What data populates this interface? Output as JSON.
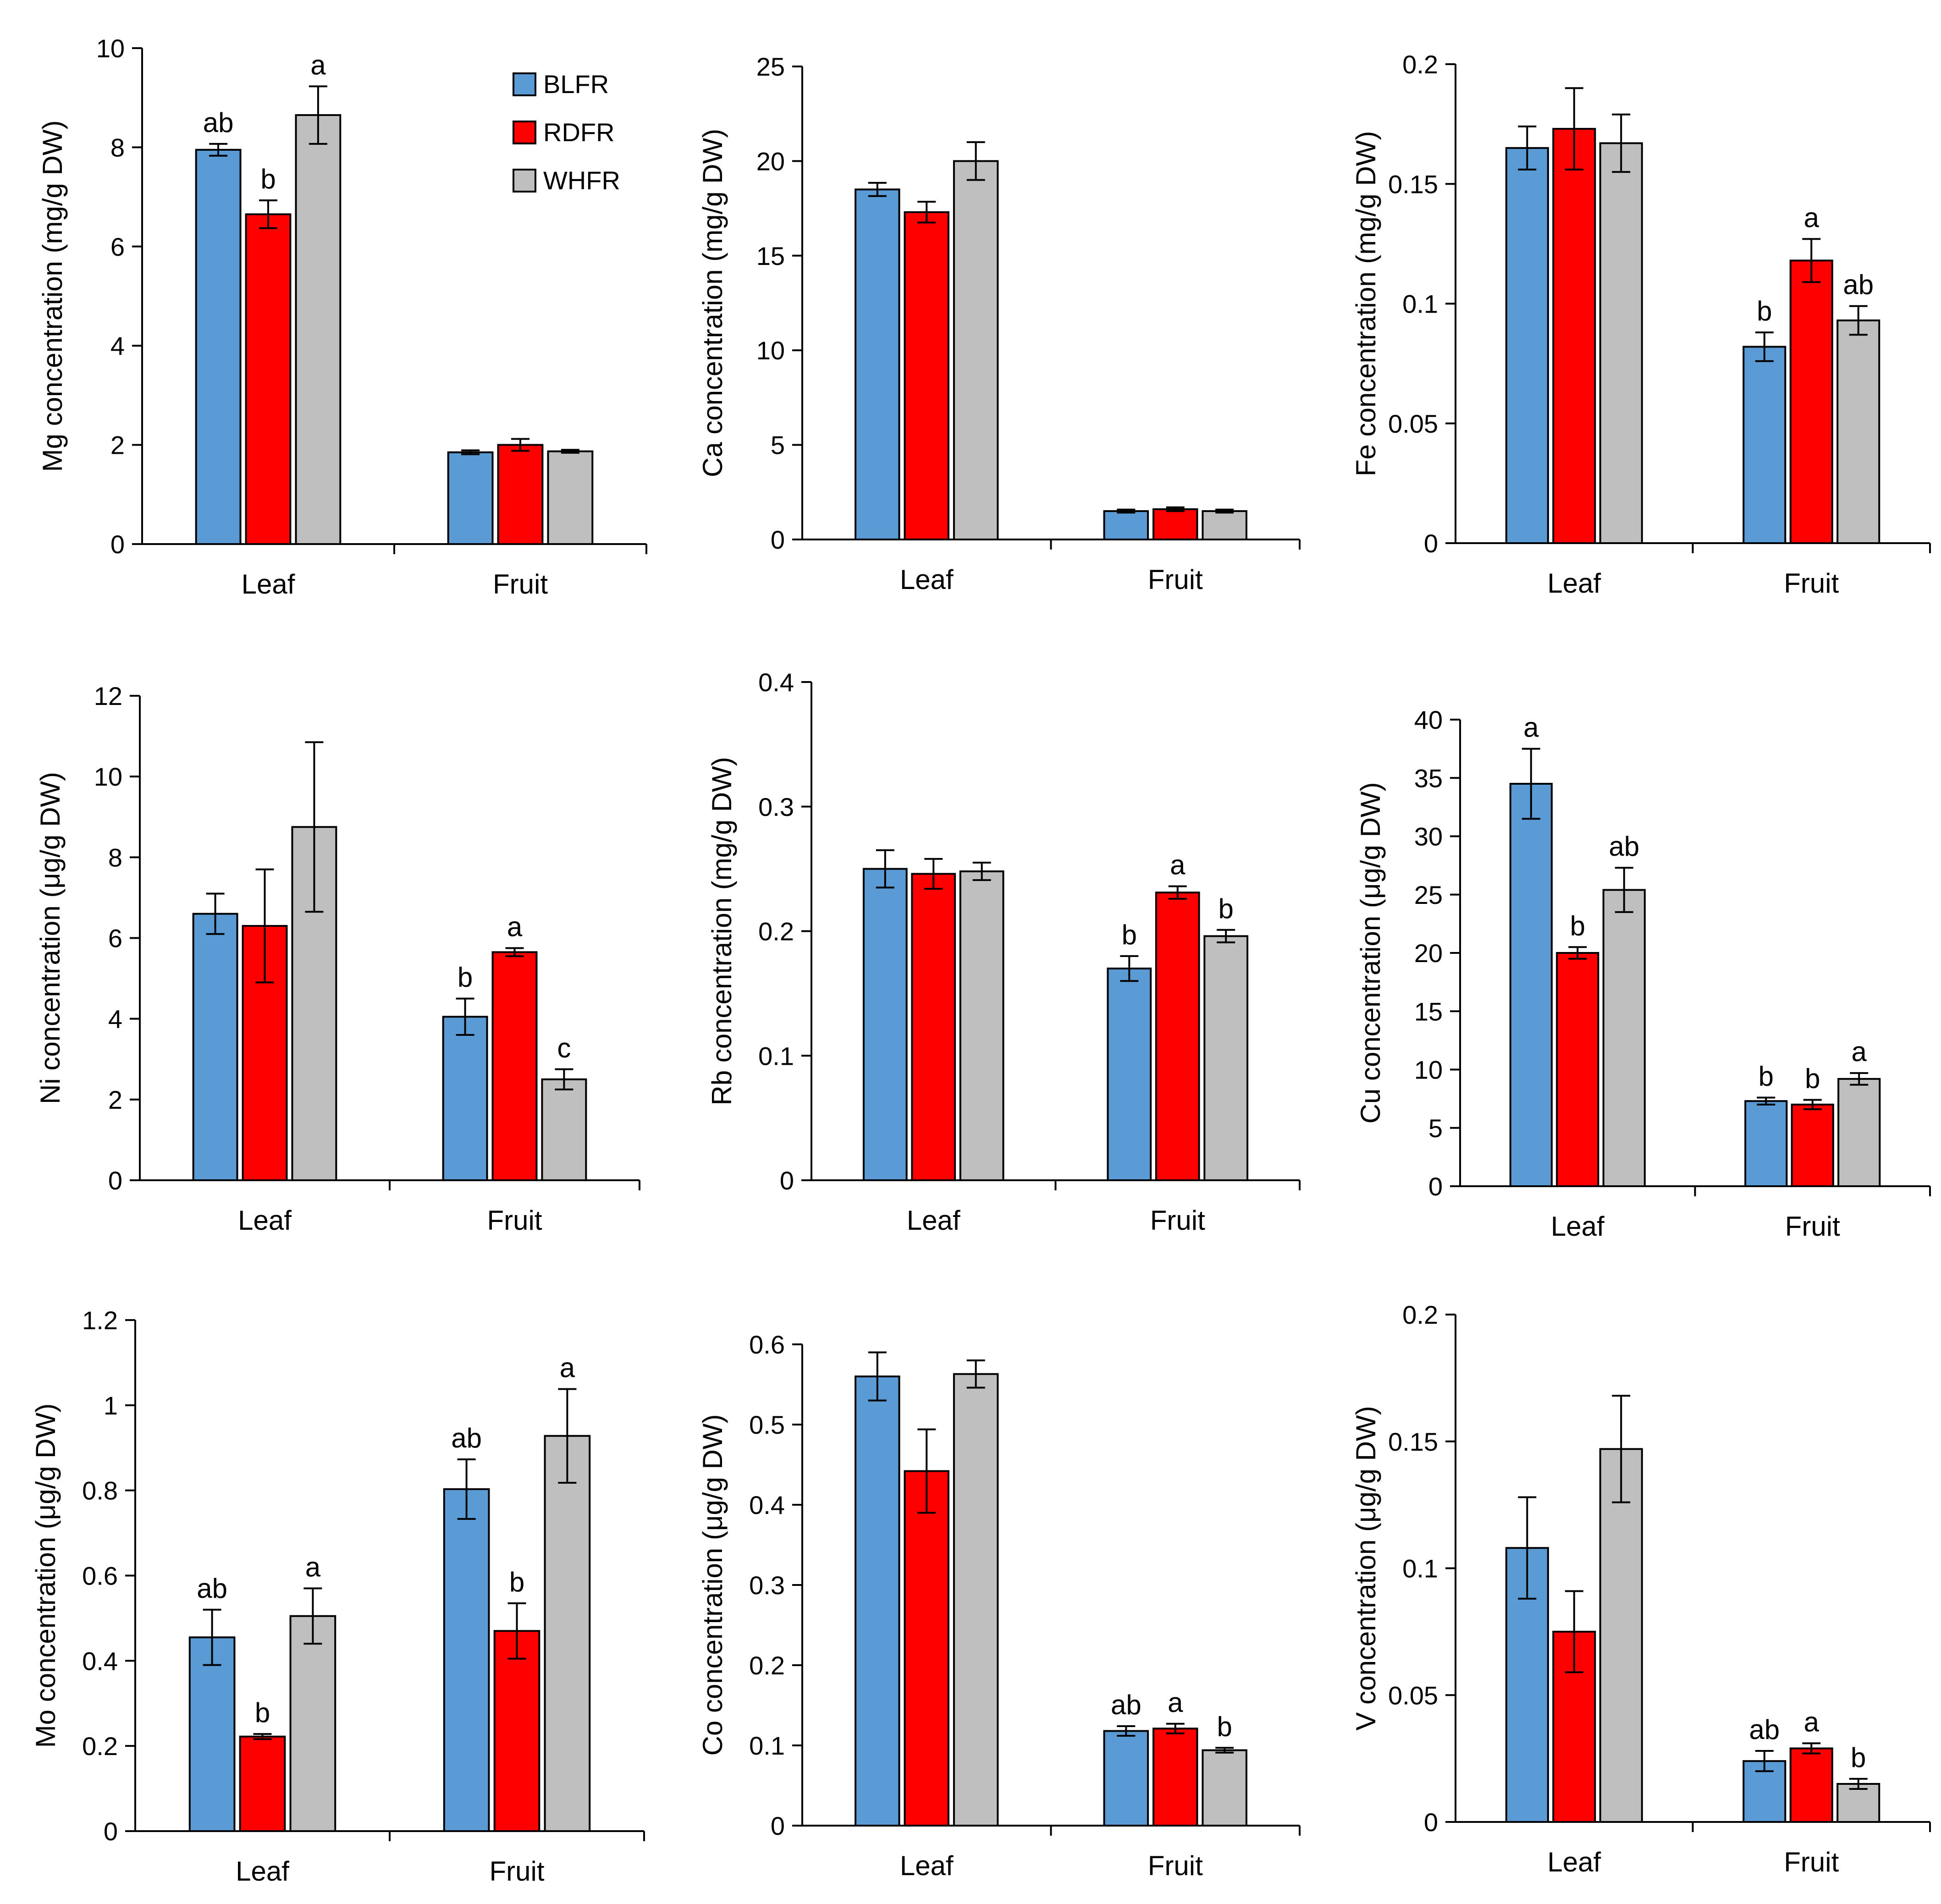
{
  "legend": [
    "BLFR",
    "RDFR",
    "WHFR"
  ],
  "colors": {
    "BLFR": "#5B9BD5",
    "RDFR": "#FF0000",
    "WHFR": "#BFBFBF"
  },
  "chart_data": [
    {
      "type": "bar",
      "ylabel": "Mg concentration (mg/g DW)",
      "ylim": [
        0,
        10
      ],
      "yticks": [
        "0",
        "2",
        "4",
        "6",
        "8",
        "10"
      ],
      "categories": [
        "Leaf",
        "Fruit"
      ],
      "series": [
        {
          "name": "BLFR",
          "values": [
            7.95,
            1.85
          ],
          "errors": [
            0.12,
            0.04
          ]
        },
        {
          "name": "RDFR",
          "values": [
            6.65,
            2.0
          ],
          "errors": [
            0.28,
            0.12
          ]
        },
        {
          "name": "WHFR",
          "values": [
            8.65,
            1.87
          ],
          "errors": [
            0.58,
            0.03
          ]
        }
      ],
      "labels": [
        [
          "ab",
          "b",
          "a"
        ],
        [
          "",
          "",
          ""
        ]
      ]
    },
    {
      "type": "bar",
      "ylabel": "Ca concentration (mg/g DW)",
      "ylim": [
        0,
        25
      ],
      "yticks": [
        "0",
        "5",
        "10",
        "15",
        "20",
        "25"
      ],
      "categories": [
        "Leaf",
        "Fruit"
      ],
      "series": [
        {
          "name": "BLFR",
          "values": [
            18.5,
            1.5
          ],
          "errors": [
            0.35,
            0.08
          ]
        },
        {
          "name": "RDFR",
          "values": [
            17.3,
            1.6
          ],
          "errors": [
            0.55,
            0.1
          ]
        },
        {
          "name": "WHFR",
          "values": [
            20.0,
            1.5
          ],
          "errors": [
            1.0,
            0.08
          ]
        }
      ],
      "labels": [
        [
          "",
          "",
          ""
        ],
        [
          "",
          "",
          ""
        ]
      ]
    },
    {
      "type": "bar",
      "ylabel": "Fe concentration (mg/g DW)",
      "ylim": [
        0,
        0.2
      ],
      "yticks": [
        "0",
        "0.05",
        "0.1",
        "0.15",
        "0.2"
      ],
      "categories": [
        "Leaf",
        "Fruit"
      ],
      "series": [
        {
          "name": "BLFR",
          "values": [
            0.165,
            0.082
          ],
          "errors": [
            0.009,
            0.006
          ]
        },
        {
          "name": "RDFR",
          "values": [
            0.173,
            0.118
          ],
          "errors": [
            0.017,
            0.009
          ]
        },
        {
          "name": "WHFR",
          "values": [
            0.167,
            0.093
          ],
          "errors": [
            0.012,
            0.006
          ]
        }
      ],
      "labels": [
        [
          "",
          "",
          ""
        ],
        [
          "b",
          "a",
          "ab"
        ]
      ]
    },
    {
      "type": "bar",
      "ylabel": "Ni concentration (μg/g DW)",
      "ylim": [
        0,
        12
      ],
      "yticks": [
        "0",
        "2",
        "4",
        "6",
        "8",
        "10",
        "12"
      ],
      "categories": [
        "Leaf",
        "Fruit"
      ],
      "series": [
        {
          "name": "BLFR",
          "values": [
            6.6,
            4.05
          ],
          "errors": [
            0.5,
            0.45
          ]
        },
        {
          "name": "RDFR",
          "values": [
            6.3,
            5.65
          ],
          "errors": [
            1.4,
            0.1
          ]
        },
        {
          "name": "WHFR",
          "values": [
            8.75,
            2.5
          ],
          "errors": [
            2.1,
            0.25
          ]
        }
      ],
      "labels": [
        [
          "",
          "",
          ""
        ],
        [
          "b",
          "a",
          "c"
        ]
      ]
    },
    {
      "type": "bar",
      "ylabel": "Rb concentration (mg/g DW)",
      "ylim": [
        0,
        0.4
      ],
      "yticks": [
        "0",
        "0.1",
        "0.2",
        "0.3",
        "0.4"
      ],
      "categories": [
        "Leaf",
        "Fruit"
      ],
      "series": [
        {
          "name": "BLFR",
          "values": [
            0.25,
            0.17
          ],
          "errors": [
            0.015,
            0.01
          ]
        },
        {
          "name": "RDFR",
          "values": [
            0.246,
            0.231
          ],
          "errors": [
            0.012,
            0.005
          ]
        },
        {
          "name": "WHFR",
          "values": [
            0.248,
            0.196
          ],
          "errors": [
            0.007,
            0.005
          ]
        }
      ],
      "labels": [
        [
          "",
          "",
          ""
        ],
        [
          "b",
          "a",
          "b"
        ]
      ]
    },
    {
      "type": "bar",
      "ylabel": "Cu concentration (μg/g DW)",
      "ylim": [
        0,
        40
      ],
      "yticks": [
        "0",
        "5",
        "10",
        "15",
        "20",
        "25",
        "30",
        "35",
        "40"
      ],
      "categories": [
        "Leaf",
        "Fruit"
      ],
      "series": [
        {
          "name": "BLFR",
          "values": [
            34.5,
            7.3
          ],
          "errors": [
            3.0,
            0.3
          ]
        },
        {
          "name": "RDFR",
          "values": [
            20.0,
            7.0
          ],
          "errors": [
            0.5,
            0.4
          ]
        },
        {
          "name": "WHFR",
          "values": [
            25.4,
            9.2
          ],
          "errors": [
            1.9,
            0.5
          ]
        }
      ],
      "labels": [
        [
          "a",
          "b",
          "ab"
        ],
        [
          "b",
          "b",
          "a"
        ]
      ]
    },
    {
      "type": "bar",
      "ylabel": "Mo concentration (μg/g DW)",
      "ylim": [
        0,
        1.2
      ],
      "yticks": [
        "0",
        "0.2",
        "0.4",
        "0.6",
        "0.8",
        "1",
        "1.2"
      ],
      "categories": [
        "Leaf",
        "Fruit"
      ],
      "series": [
        {
          "name": "BLFR",
          "values": [
            0.455,
            0.803
          ],
          "errors": [
            0.065,
            0.07
          ]
        },
        {
          "name": "RDFR",
          "values": [
            0.222,
            0.47
          ],
          "errors": [
            0.006,
            0.065
          ]
        },
        {
          "name": "WHFR",
          "values": [
            0.505,
            0.928
          ],
          "errors": [
            0.065,
            0.11
          ]
        }
      ],
      "labels": [
        [
          "ab",
          "b",
          "a"
        ],
        [
          "ab",
          "b",
          "a"
        ]
      ]
    },
    {
      "type": "bar",
      "ylabel": "Co concentration (μg/g DW)",
      "ylim": [
        0,
        0.6
      ],
      "yticks": [
        "0",
        "0.1",
        "0.2",
        "0.3",
        "0.4",
        "0.5",
        "0.6"
      ],
      "categories": [
        "Leaf",
        "Fruit"
      ],
      "series": [
        {
          "name": "BLFR",
          "values": [
            0.56,
            0.118
          ],
          "errors": [
            0.03,
            0.006
          ]
        },
        {
          "name": "RDFR",
          "values": [
            0.442,
            0.121
          ],
          "errors": [
            0.052,
            0.006
          ]
        },
        {
          "name": "WHFR",
          "values": [
            0.563,
            0.094
          ],
          "errors": [
            0.017,
            0.003
          ]
        }
      ],
      "labels": [
        [
          "",
          "",
          ""
        ],
        [
          "ab",
          "a",
          "b"
        ]
      ]
    },
    {
      "type": "bar",
      "ylabel": "V concentration (μg/g DW)",
      "ylim": [
        0,
        0.2
      ],
      "yticks": [
        "0",
        "0.05",
        "0.1",
        "0.15",
        "0.2"
      ],
      "categories": [
        "Leaf",
        "Fruit"
      ],
      "series": [
        {
          "name": "BLFR",
          "values": [
            0.108,
            0.024
          ],
          "errors": [
            0.02,
            0.004
          ]
        },
        {
          "name": "RDFR",
          "values": [
            0.075,
            0.029
          ],
          "errors": [
            0.016,
            0.002
          ]
        },
        {
          "name": "WHFR",
          "values": [
            0.147,
            0.015
          ],
          "errors": [
            0.021,
            0.002
          ]
        }
      ],
      "labels": [
        [
          "",
          "",
          ""
        ],
        [
          "ab",
          "a",
          "b"
        ]
      ]
    }
  ]
}
